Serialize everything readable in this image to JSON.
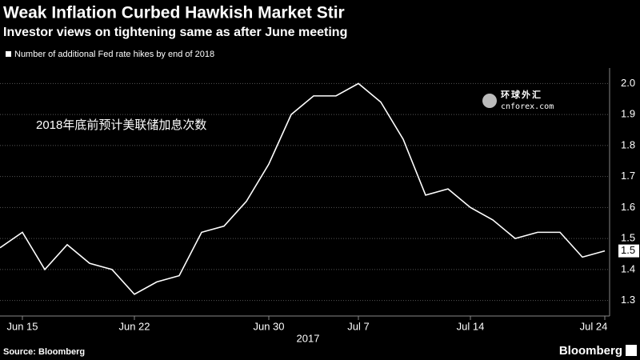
{
  "chart_data": {
    "type": "line",
    "title": "Weak Inflation Curbed Hawkish Market Stir",
    "subtitle": "Investor views on tightening same as after June meeting",
    "annotation": "2018年底前预计美联储加息次数",
    "source": "Source: Bloomberg",
    "brand": "Bloomberg",
    "watermark": "环球外汇",
    "watermark_url": "cnforex.com",
    "xlabel": "2017",
    "categories": [
      null,
      "Jun 15",
      null,
      null,
      null,
      null,
      "Jun 22",
      null,
      null,
      null,
      null,
      null,
      "Jun 30",
      null,
      null,
      null,
      "Jul 7",
      null,
      null,
      null,
      null,
      "Jul 14",
      null,
      null,
      null,
      null,
      null,
      "Jul 24"
    ],
    "series": [
      {
        "name": "Number of additional Fed rate hikes by end of 2018",
        "color": "#ffffff",
        "values": [
          1.47,
          1.52,
          1.4,
          1.48,
          1.42,
          1.4,
          1.32,
          1.36,
          1.38,
          1.52,
          1.54,
          1.62,
          1.74,
          1.9,
          1.96,
          1.96,
          2.0,
          1.94,
          1.82,
          1.64,
          1.66,
          1.6,
          1.56,
          1.5,
          1.52,
          1.52,
          1.44,
          1.46
        ],
        "last_value_label": "1.5"
      }
    ],
    "ylim": [
      1.25,
      2.05
    ],
    "yticks": [
      1.3,
      1.4,
      1.5,
      1.6,
      1.7,
      1.8,
      1.9,
      {
        "value": 2,
        "label": "2.0"
      }
    ],
    "grid": true
  }
}
